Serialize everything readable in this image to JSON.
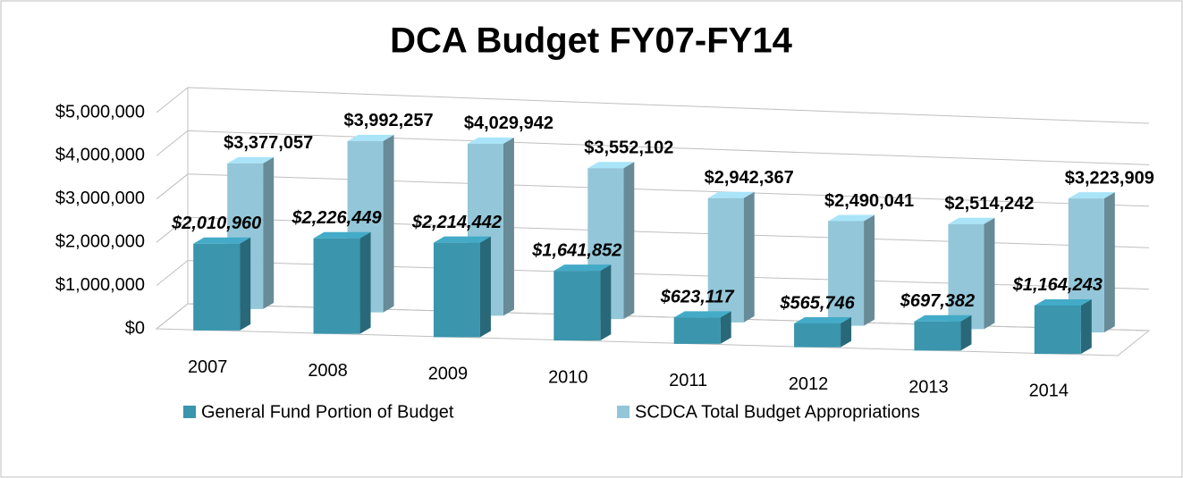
{
  "chart_data": {
    "type": "bar3d",
    "title": "DCA Budget FY07-FY14",
    "categories": [
      "2007",
      "2008",
      "2009",
      "2010",
      "2011",
      "2012",
      "2013",
      "2014"
    ],
    "series": [
      {
        "name": "General Fund Portion of Budget",
        "color": "#3a95ad",
        "values": [
          2010960,
          2226449,
          2214442,
          1641852,
          623117,
          565746,
          697382,
          1164243
        ],
        "value_labels": [
          "$2,010,960",
          "$2,226,449",
          "$2,214,442",
          "$1,641,852",
          "$623,117",
          "$565,746",
          "$697,382",
          "$1,164,243"
        ]
      },
      {
        "name": "SCDCA Total Budget Appropriations",
        "color": "#93c6d8",
        "values": [
          3377057,
          3992257,
          4029942,
          3552102,
          2942367,
          2490041,
          2514242,
          3223909
        ],
        "value_labels": [
          "$3,377,057",
          "$3,992,257",
          "$4,029,942",
          "$3,552,102",
          "$2,942,367",
          "$2,490,041",
          "$2,514,242",
          "$3,223,909"
        ]
      }
    ],
    "ylim": [
      0,
      5000000
    ],
    "yticks": [
      {
        "value": 0,
        "label": "$0"
      },
      {
        "value": 1000000,
        "label": "$1,000,000"
      },
      {
        "value": 2000000,
        "label": "$2,000,000"
      },
      {
        "value": 3000000,
        "label": "$3,000,000"
      },
      {
        "value": 4000000,
        "label": "$4,000,000"
      },
      {
        "value": 5000000,
        "label": "$5,000,000"
      }
    ],
    "grid": true,
    "legend": "bottom"
  }
}
